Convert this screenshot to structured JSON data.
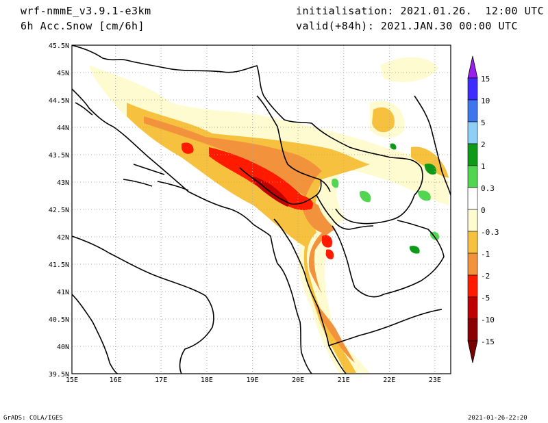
{
  "header": {
    "model": "wrf-nmmE_v3.9.1-e3km",
    "field": "6h Acc.Snow [cm/6h]",
    "initialisation": "initialisation: 2021.01.26.  12:00 UTC",
    "valid": "valid(+84h): 2021.JAN.30 00:00 UTC"
  },
  "map": {
    "lat_labels": [
      "45.5N",
      "45N",
      "44.5N",
      "44N",
      "43.5N",
      "43N",
      "42.5N",
      "42N",
      "41.5N",
      "41N",
      "40.5N",
      "40N",
      "39.5N"
    ],
    "lon_labels": [
      "15E",
      "16E",
      "17E",
      "18E",
      "19E",
      "20E",
      "21E",
      "22E",
      "23E"
    ],
    "lat_range": [
      39.5,
      45.5
    ],
    "lon_range": [
      15,
      23.3
    ],
    "grid": "dotted"
  },
  "colorbar": {
    "labels": [
      "15",
      "10",
      "5",
      "2",
      "1",
      "0.3",
      "0",
      "-0.3",
      "-1",
      "-2",
      "-5",
      "-10",
      "-15"
    ],
    "colors": [
      "#3d2bff",
      "#3f76ee",
      "#8fcff5",
      "#0e9a18",
      "#52d550",
      "#ffffff",
      "#fffbd0",
      "#f7c140",
      "#f2923d",
      "#ff1a00",
      "#c00000",
      "#8b0000"
    ],
    "top_arrow_color": "#9a1fea",
    "bottom_arrow_color": "#7a0000"
  },
  "footer": {
    "left": "GrADS: COLA/IGES",
    "right": "2021-01-26-22:20"
  }
}
